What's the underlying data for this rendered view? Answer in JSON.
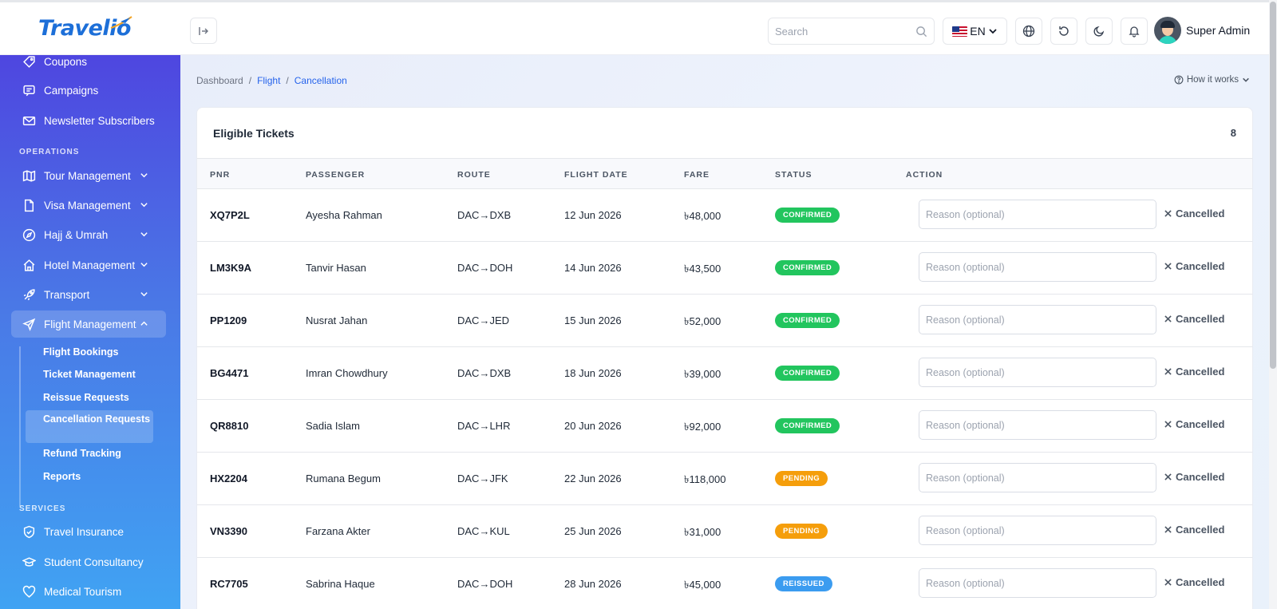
{
  "brand": {
    "name": "Travelio"
  },
  "header": {
    "search_placeholder": "Search",
    "language": "EN",
    "user_name": "Super Admin"
  },
  "sidebar": {
    "top_items": [
      {
        "label": "Coupons",
        "icon": "tag-icon"
      },
      {
        "label": "Campaigns",
        "icon": "message-icon"
      },
      {
        "label": "Newsletter Subscribers",
        "icon": "mail-icon"
      }
    ],
    "sections": {
      "operations": "OPERATIONS",
      "services": "SERVICES"
    },
    "operations_items": [
      {
        "label": "Tour Management",
        "icon": "map-icon"
      },
      {
        "label": "Visa Management",
        "icon": "document-icon"
      },
      {
        "label": "Hajj & Umrah",
        "icon": "compass-icon"
      },
      {
        "label": "Hotel Management",
        "icon": "home-icon"
      },
      {
        "label": "Transport",
        "icon": "rocket-icon"
      },
      {
        "label": "Flight Management",
        "icon": "plane-icon"
      }
    ],
    "flight_subitems": [
      "Flight Bookings",
      "Ticket Management",
      "Reissue Requests",
      "Cancellation Requests",
      "Refund Tracking",
      "Reports"
    ],
    "services_items": [
      {
        "label": "Travel Insurance",
        "icon": "shield-icon"
      },
      {
        "label": "Student Consultancy",
        "icon": "graduation-icon"
      },
      {
        "label": "Medical Tourism",
        "icon": "heart-icon"
      }
    ]
  },
  "breadcrumb": {
    "home": "Dashboard",
    "sep": "/",
    "section": "Flight",
    "current": "Cancellation"
  },
  "how_it_works": "How it works",
  "card": {
    "title": "Eligible Tickets",
    "count": "8",
    "columns": [
      "PNR",
      "PASSENGER",
      "ROUTE",
      "FLIGHT DATE",
      "FARE",
      "STATUS",
      "ACTION"
    ],
    "reason_placeholder": "Reason (optional)",
    "cancel_label": "Cancelled",
    "rows": [
      {
        "pnr": "XQ7P2L",
        "passenger": "Ayesha Rahman",
        "route": "DAC→DXB",
        "date": "12 Jun 2026",
        "fare": "৳48,000",
        "status": "CONFIRMED"
      },
      {
        "pnr": "LM3K9A",
        "passenger": "Tanvir Hasan",
        "route": "DAC→DOH",
        "date": "14 Jun 2026",
        "fare": "৳43,500",
        "status": "CONFIRMED"
      },
      {
        "pnr": "PP1209",
        "passenger": "Nusrat Jahan",
        "route": "DAC→JED",
        "date": "15 Jun 2026",
        "fare": "৳52,000",
        "status": "CONFIRMED"
      },
      {
        "pnr": "BG4471",
        "passenger": "Imran Chowdhury",
        "route": "DAC→DXB",
        "date": "18 Jun 2026",
        "fare": "৳39,000",
        "status": "CONFIRMED"
      },
      {
        "pnr": "QR8810",
        "passenger": "Sadia Islam",
        "route": "DAC→LHR",
        "date": "20 Jun 2026",
        "fare": "৳92,000",
        "status": "CONFIRMED"
      },
      {
        "pnr": "HX2204",
        "passenger": "Rumana Begum",
        "route": "DAC→JFK",
        "date": "22 Jun 2026",
        "fare": "৳118,000",
        "status": "PENDING"
      },
      {
        "pnr": "VN3390",
        "passenger": "Farzana Akter",
        "route": "DAC→KUL",
        "date": "25 Jun 2026",
        "fare": "৳31,000",
        "status": "PENDING"
      },
      {
        "pnr": "RC7705",
        "passenger": "Sabrina Haque",
        "route": "DAC→DOH",
        "date": "28 Jun 2026",
        "fare": "৳45,000",
        "status": "REISSUED"
      }
    ]
  },
  "status_colors": {
    "CONFIRMED": "#22c55e",
    "PENDING": "#f59e0b",
    "REISSUED": "#3b9cf0"
  },
  "accent_color": "#2563eb"
}
